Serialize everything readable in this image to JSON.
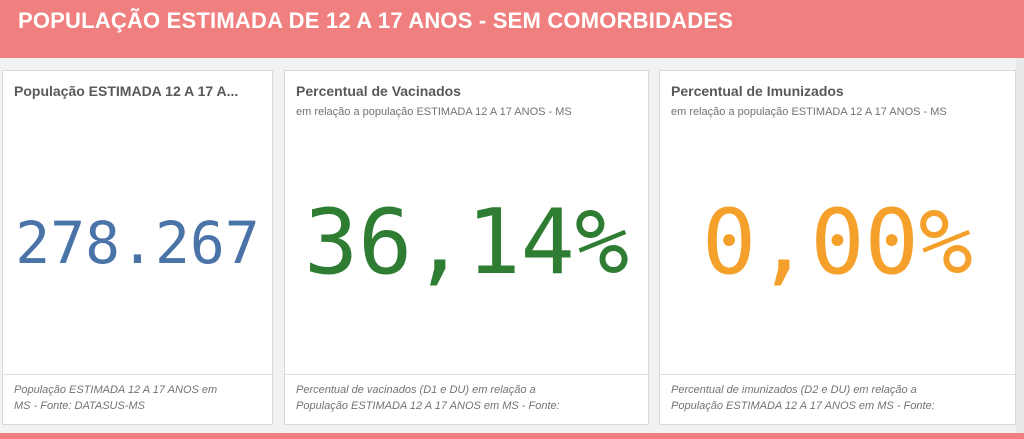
{
  "header": {
    "title": "POPULAÇÃO ESTIMADA DE 12 A 17 ANOS - SEM COMORBIDADES"
  },
  "cards": [
    {
      "title": "População ESTIMADA 12 A 17 A...",
      "subtitle": "",
      "value": "278.267",
      "value_color": "#4a74a8",
      "footer_line1": "População ESTIMADA 12 A 17 ANOS em",
      "footer_line2": "MS - Fonte: DATASUS-MS"
    },
    {
      "title": "Percentual de Vacinados",
      "subtitle": "em relação a população ESTIMADA 12 A 17 ANOS - MS",
      "value": "36,14%",
      "value_color": "#2e7d32",
      "footer_line1": "Percentual de vacinados (D1 e DU) em relação a",
      "footer_line2": "População ESTIMADA 12 A 17 ANOS em MS - Fonte:"
    },
    {
      "title": "Percentual de Imunizados",
      "subtitle": "em relação a população ESTIMADA 12 A 17 ANOS - MS",
      "value": "0,00%",
      "value_color": "#f5a02a",
      "footer_line1": "Percentual de imunizados (D2 e DU) em relação a",
      "footer_line2": "População ESTIMADA 12 A 17 ANOS em MS - Fonte:"
    }
  ],
  "colors": {
    "header_bg": "#f08080",
    "page_bg": "#f2f2f2"
  }
}
